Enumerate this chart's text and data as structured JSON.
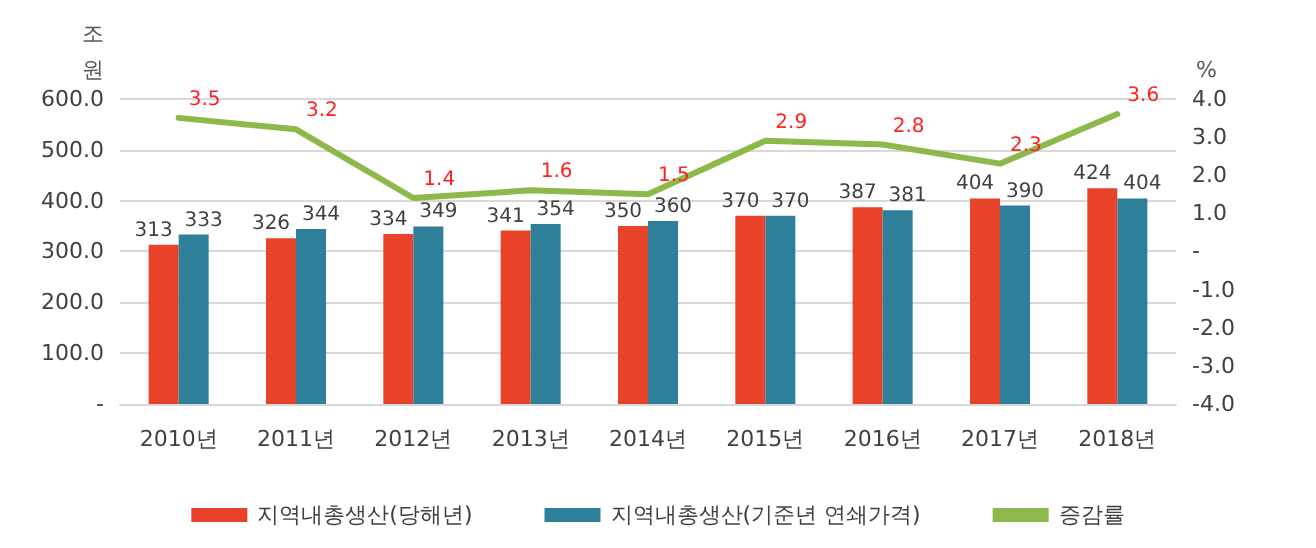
{
  "chart_data": {
    "type": "bar",
    "categories": [
      "2010년",
      "2011년",
      "2012년",
      "2013년",
      "2014년",
      "2015년",
      "2016년",
      "2017년",
      "2018년"
    ],
    "series": [
      {
        "name": "지역내총생산(당해년)",
        "color": "#e8432a",
        "values": [
          313,
          326,
          334,
          341,
          350,
          370,
          387,
          404,
          424
        ]
      },
      {
        "name": "지역내총생산(기준년 연쇄가격)",
        "color": "#2e7f9a",
        "values": [
          333,
          344,
          349,
          354,
          360,
          370,
          381,
          390,
          404
        ]
      },
      {
        "name": "증감률",
        "type": "line",
        "axis": "y2",
        "color": "#8db84a",
        "values": [
          3.5,
          3.2,
          1.4,
          1.6,
          1.5,
          2.9,
          2.8,
          2.3,
          3.6
        ]
      }
    ],
    "ylabel": "조원",
    "y2label": "%",
    "ylim": [
      0,
      600
    ],
    "yticks": [
      {
        "value": 0,
        "label": "-"
      },
      {
        "value": 100,
        "label": "100.0"
      },
      {
        "value": 200,
        "label": "200.0"
      },
      {
        "value": 300,
        "label": "300.0"
      },
      {
        "value": 400,
        "label": "400.0"
      },
      {
        "value": 500,
        "label": "500.0"
      },
      {
        "value": 600,
        "label": "600.0"
      }
    ],
    "y2lim": [
      -4,
      4
    ],
    "y2ticks": [
      {
        "value": -4,
        "label": "-4.0"
      },
      {
        "value": -3,
        "label": "-3.0"
      },
      {
        "value": -2,
        "label": "-2.0"
      },
      {
        "value": -1,
        "label": "-1.0"
      },
      {
        "value": 0,
        "label": "-"
      },
      {
        "value": 1,
        "label": "1.0"
      },
      {
        "value": 2,
        "label": "2.0"
      },
      {
        "value": 3,
        "label": "3.0"
      },
      {
        "value": 4,
        "label": "4.0"
      }
    ],
    "data_labels": true,
    "grid": "y",
    "legend": "bottom",
    "marker": "none",
    "line_style": "solid"
  }
}
